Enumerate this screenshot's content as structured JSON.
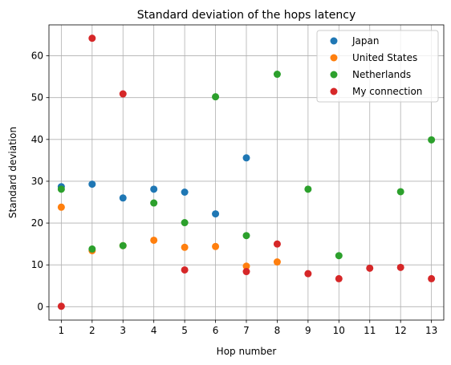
{
  "chart_data": {
    "type": "scatter",
    "title": "Standard deviation of the hops latency",
    "xlabel": "Hop number",
    "ylabel": "Standard deviation",
    "xlim": [
      0.6,
      13.4
    ],
    "ylim": [
      -3.2,
      67.4
    ],
    "xticks": [
      1,
      2,
      3,
      4,
      5,
      6,
      7,
      8,
      9,
      10,
      11,
      12,
      13
    ],
    "yticks": [
      0,
      10,
      20,
      30,
      40,
      50,
      60
    ],
    "grid": true,
    "legend_position": "top-right",
    "series": [
      {
        "name": "Japan",
        "color": "#1f77b4",
        "points": [
          [
            1,
            28.7
          ],
          [
            2,
            29.3
          ],
          [
            3,
            26.0
          ],
          [
            4,
            28.1
          ],
          [
            5,
            27.4
          ],
          [
            6,
            22.2
          ],
          [
            7,
            35.6
          ]
        ]
      },
      {
        "name": "United States",
        "color": "#ff7f0e",
        "points": [
          [
            1,
            23.8
          ],
          [
            2,
            13.4
          ],
          [
            3,
            14.6
          ],
          [
            4,
            15.9
          ],
          [
            5,
            14.2
          ],
          [
            6,
            14.4
          ],
          [
            7,
            9.7
          ],
          [
            8,
            10.7
          ]
        ]
      },
      {
        "name": "Netherlands",
        "color": "#2ca02c",
        "points": [
          [
            1,
            28.1
          ],
          [
            2,
            13.8
          ],
          [
            3,
            14.6
          ],
          [
            4,
            24.8
          ],
          [
            5,
            20.1
          ],
          [
            6,
            50.2
          ],
          [
            7,
            17.0
          ],
          [
            8,
            55.6
          ],
          [
            9,
            28.1
          ],
          [
            10,
            12.2
          ],
          [
            12,
            27.5
          ],
          [
            13,
            39.9
          ]
        ]
      },
      {
        "name": "My connection",
        "color": "#d62728",
        "points": [
          [
            1,
            0.1
          ],
          [
            2,
            64.2
          ],
          [
            3,
            50.9
          ],
          [
            5,
            8.8
          ],
          [
            7,
            8.4
          ],
          [
            8,
            15.0
          ],
          [
            9,
            7.9
          ],
          [
            10,
            6.7
          ],
          [
            11,
            9.2
          ],
          [
            12,
            9.4
          ],
          [
            13,
            6.7
          ]
        ]
      }
    ]
  }
}
